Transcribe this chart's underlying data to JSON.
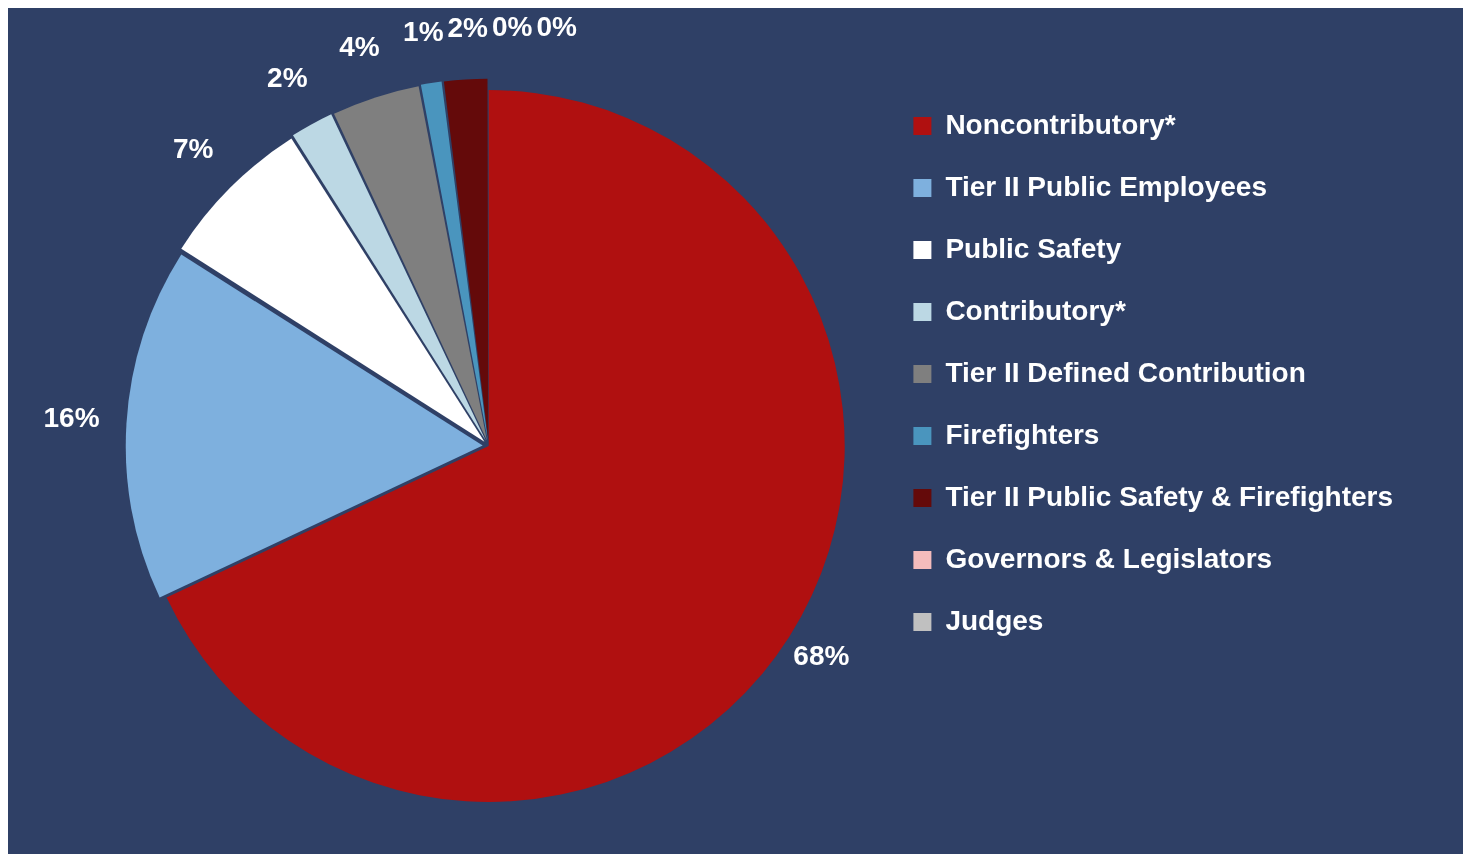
{
  "chart_data": {
    "type": "pie",
    "categories": [
      "Noncontributory*",
      "Tier II Public Employees",
      "Public Safety",
      "Contributory*",
      "Tier II Defined Contribution",
      "Firefighters",
      "Tier II Public Safety & Firefighters",
      "Governors & Legislators",
      "Judges"
    ],
    "values": [
      68,
      16,
      7,
      2,
      4,
      1,
      2,
      0,
      0
    ],
    "colors": [
      "#b01010",
      "#7eb0de",
      "#ffffff",
      "#bcd8e4",
      "#7f7f7f",
      "#4a95be",
      "#640a0a",
      "#f4bcbc",
      "#c0c0c0"
    ],
    "value_labels": [
      "68%",
      "16%",
      "7%",
      "2%",
      "4%",
      "1%",
      "2%",
      "0%",
      "0%"
    ],
    "legend": "right"
  }
}
